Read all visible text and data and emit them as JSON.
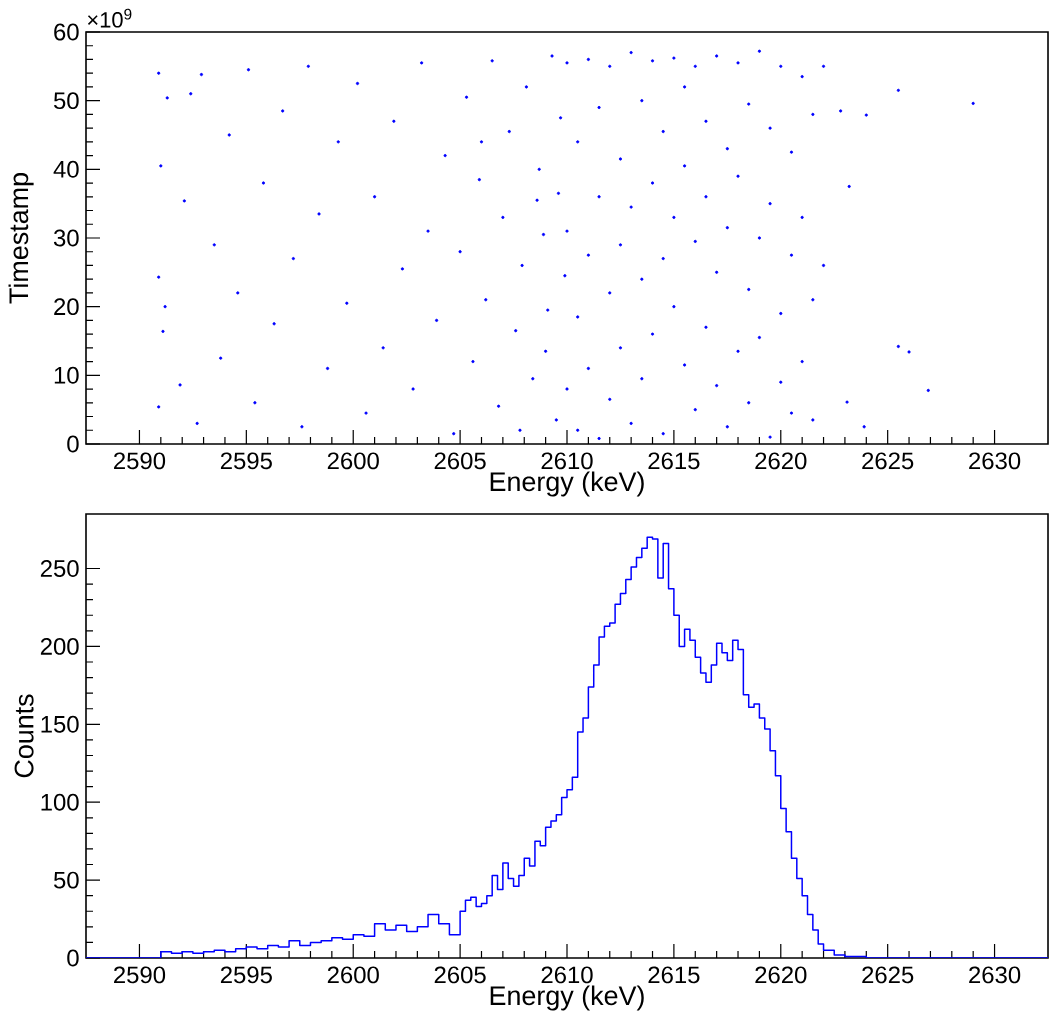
{
  "chart_data": [
    {
      "type": "scatter",
      "xlabel": "Energy (keV)",
      "ylabel": "Timestamp",
      "annotations": [
        "×10$^{9}$"
      ],
      "marker": "circle",
      "color": "#0000ff",
      "xlim": [
        2587.5,
        2632.5
      ],
      "xticks": [
        2590,
        2595,
        2600,
        2605,
        2610,
        2615,
        2620,
        2625,
        2630
      ],
      "ylim": [
        0,
        60
      ],
      "yticks": [
        0,
        10,
        20,
        30,
        40,
        50,
        60
      ],
      "x": [
        2590.9,
        2591.0,
        2590.9,
        2591.1,
        2590.9,
        2591.3,
        2591.2,
        2591.9,
        2592.4,
        2592.1,
        2592.9,
        2592.7,
        2593.5,
        2593.8,
        2594.2,
        2594.6,
        2595.1,
        2595.4,
        2595.8,
        2596.3,
        2596.7,
        2597.2,
        2597.6,
        2597.9,
        2598.4,
        2598.8,
        2599.3,
        2599.7,
        2600.2,
        2600.6,
        2601.0,
        2601.4,
        2601.9,
        2602.3,
        2602.8,
        2603.2,
        2603.5,
        2603.9,
        2604.3,
        2604.7,
        2605.0,
        2605.3,
        2605.6,
        2605.9,
        2606.2,
        2606.5,
        2606.8,
        2607.0,
        2607.3,
        2607.6,
        2607.9,
        2608.1,
        2608.4,
        2608.7,
        2608.9,
        2609.1,
        2609.3,
        2609.5,
        2609.7,
        2609.9,
        2606.0,
        2607.8,
        2608.6,
        2609.0,
        2609.6,
        2610.0,
        2610.0,
        2610.0,
        2610.5,
        2610.5,
        2610.5,
        2611.0,
        2611.0,
        2611.0,
        2611.5,
        2611.5,
        2611.5,
        2612.0,
        2612.0,
        2612.0,
        2612.5,
        2612.5,
        2612.5,
        2613.0,
        2613.0,
        2613.0,
        2613.5,
        2613.5,
        2613.5,
        2614.0,
        2614.0,
        2614.0,
        2614.5,
        2614.5,
        2614.5,
        2615.0,
        2615.0,
        2615.0,
        2615.5,
        2615.5,
        2615.5,
        2616.0,
        2616.0,
        2616.0,
        2616.5,
        2616.5,
        2616.5,
        2617.0,
        2617.0,
        2617.0,
        2617.5,
        2617.5,
        2617.5,
        2618.0,
        2618.0,
        2618.0,
        2618.5,
        2618.5,
        2618.5,
        2619.0,
        2619.0,
        2619.0,
        2619.5,
        2619.5,
        2619.5,
        2620.0,
        2620.0,
        2620.0,
        2620.5,
        2620.5,
        2620.5,
        2621.0,
        2621.0,
        2621.0,
        2621.5,
        2621.5,
        2621.5,
        2622.0,
        2622.0,
        2625.5,
        2629.0,
        2624.0,
        2622.8,
        2625.5,
        2626.0,
        2626.9,
        2623.9,
        2623.1,
        2623.2
      ],
      "values": [
        54.0,
        40.5,
        24.3,
        16.4,
        5.4,
        50.4,
        20.0,
        8.6,
        51.0,
        35.4,
        53.8,
        3.0,
        29.0,
        12.5,
        45.0,
        22.0,
        54.5,
        6.0,
        38.0,
        17.5,
        48.5,
        27.0,
        2.5,
        55.0,
        33.5,
        11.0,
        44.0,
        20.5,
        52.5,
        4.5,
        36.0,
        14.0,
        47.0,
        25.5,
        8.0,
        55.5,
        31.0,
        18.0,
        42.0,
        1.5,
        28.0,
        50.5,
        12.0,
        38.5,
        21.0,
        55.8,
        5.5,
        33.0,
        45.5,
        16.5,
        26.0,
        52.0,
        9.5,
        40.0,
        30.5,
        19.5,
        56.5,
        3.5,
        47.5,
        24.5,
        44.0,
        2.0,
        35.5,
        13.5,
        36.5,
        55.5,
        31.0,
        8.0,
        44.0,
        18.5,
        2.0,
        56.0,
        27.5,
        11.0,
        49.0,
        36.0,
        0.8,
        55.0,
        22.0,
        6.5,
        41.5,
        14.0,
        29.0,
        57.0,
        34.5,
        3.0,
        50.0,
        24.0,
        9.5,
        55.8,
        38.0,
        16.0,
        45.5,
        27.0,
        1.5,
        56.2,
        20.0,
        33.0,
        52.0,
        11.5,
        40.5,
        55.0,
        29.5,
        5.0,
        47.0,
        17.0,
        36.0,
        56.5,
        25.0,
        8.5,
        43.0,
        31.5,
        2.5,
        55.5,
        13.5,
        39.0,
        49.5,
        22.5,
        6.0,
        57.2,
        30.0,
        15.5,
        46.0,
        35.0,
        1.0,
        55.0,
        19.0,
        9.0,
        42.5,
        27.5,
        4.5,
        53.5,
        33.0,
        12.0,
        48.0,
        21.0,
        3.5,
        55.0,
        26.0,
        51.5,
        49.6,
        47.9,
        48.5,
        14.2,
        13.4,
        7.8,
        2.5,
        6.1,
        37.5
      ]
    },
    {
      "type": "histogram",
      "xlabel": "Energy (keV)",
      "ylabel": "Counts",
      "color": "#0000ff",
      "xlim": [
        2587.5,
        2632.5
      ],
      "xticks": [
        2590,
        2595,
        2600,
        2605,
        2610,
        2615,
        2620,
        2625,
        2630
      ],
      "ylim": [
        0,
        285
      ],
      "yticks": [
        0,
        50,
        100,
        150,
        200,
        250
      ],
      "bins": [
        2587.5,
        2591,
        2591.5,
        2592,
        2592.5,
        2593,
        2593.5,
        2594,
        2594.5,
        2595,
        2595.5,
        2596,
        2596.5,
        2597,
        2597.5,
        2598,
        2598.5,
        2599,
        2599.5,
        2600,
        2600.5,
        2601,
        2601.5,
        2602,
        2602.5,
        2603,
        2603.5,
        2604,
        2604.5,
        2605,
        2605.25,
        2605.5,
        2605.75,
        2606,
        2606.25,
        2606.5,
        2606.75,
        2607,
        2607.25,
        2607.5,
        2607.75,
        2608,
        2608.25,
        2608.5,
        2608.75,
        2609,
        2609.25,
        2609.5,
        2609.75,
        2610,
        2610.25,
        2610.5,
        2610.75,
        2611,
        2611.25,
        2611.5,
        2611.75,
        2612,
        2612.25,
        2612.5,
        2612.75,
        2613,
        2613.25,
        2613.5,
        2613.75,
        2614,
        2614.25,
        2614.5,
        2614.75,
        2615,
        2615.25,
        2615.5,
        2615.75,
        2616,
        2616.25,
        2616.5,
        2616.75,
        2617,
        2617.25,
        2617.5,
        2617.75,
        2618,
        2618.25,
        2618.5,
        2618.75,
        2619,
        2619.25,
        2619.5,
        2619.75,
        2620,
        2620.25,
        2620.5,
        2620.75,
        2621,
        2621.25,
        2621.5,
        2621.75,
        2622,
        2622.5,
        2623,
        2623.5,
        2624,
        2632.5
      ],
      "values": [
        0,
        4,
        3,
        4,
        3,
        4,
        5,
        4,
        6,
        7,
        6,
        8,
        7,
        11,
        8,
        10,
        11,
        13,
        12,
        15,
        14,
        22,
        18,
        21,
        17,
        20,
        28,
        22,
        15,
        30,
        37,
        39,
        33,
        35,
        40,
        53,
        44,
        61,
        51,
        46,
        53,
        64,
        59,
        75,
        72,
        84,
        88,
        92,
        103,
        108,
        116,
        145,
        154,
        174,
        188,
        206,
        213,
        215,
        227,
        234,
        243,
        251,
        257,
        263,
        270,
        269,
        244,
        266,
        237,
        220,
        200,
        211,
        204,
        193,
        183,
        177,
        188,
        202,
        196,
        191,
        204,
        198,
        169,
        161,
        163,
        154,
        147,
        133,
        117,
        96,
        81,
        64,
        51,
        40,
        28,
        18,
        9,
        5,
        2,
        1,
        1,
        0
      ]
    }
  ]
}
